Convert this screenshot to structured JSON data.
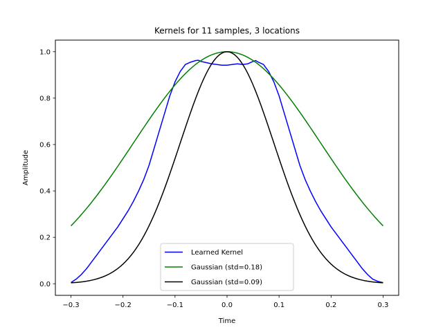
{
  "chart_data": {
    "type": "line",
    "title": "Kernels for 11 samples, 3 locations",
    "xlabel": "Time",
    "ylabel": "Amplitude",
    "xlim": [
      -0.33,
      0.33
    ],
    "ylim": [
      -0.05,
      1.05
    ],
    "xticks": [
      -0.3,
      -0.2,
      -0.1,
      0.0,
      0.1,
      0.2,
      0.3
    ],
    "xtick_labels": [
      "−0.3",
      "−0.2",
      "−0.1",
      "0.0",
      "0.1",
      "0.2",
      "0.3"
    ],
    "yticks": [
      0.0,
      0.2,
      0.4,
      0.6,
      0.8,
      1.0
    ],
    "ytick_labels": [
      "0.0",
      "0.2",
      "0.4",
      "0.6",
      "0.8",
      "1.0"
    ],
    "grid": false,
    "legend_position": "lower center",
    "series": [
      {
        "name": "Learned Kernel",
        "color": "#0000ff",
        "x": [
          -0.3,
          -0.29,
          -0.28,
          -0.27,
          -0.26,
          -0.25,
          -0.24,
          -0.23,
          -0.22,
          -0.21,
          -0.2,
          -0.19,
          -0.18,
          -0.17,
          -0.16,
          -0.15,
          -0.14,
          -0.13,
          -0.12,
          -0.11,
          -0.1,
          -0.09,
          -0.08,
          -0.07,
          -0.06,
          -0.055,
          -0.05,
          -0.04,
          -0.03,
          -0.02,
          -0.01,
          0.0,
          0.01,
          0.02,
          0.03,
          0.04,
          0.05,
          0.055,
          0.06,
          0.07,
          0.08,
          0.09,
          0.1,
          0.11,
          0.12,
          0.13,
          0.14,
          0.15,
          0.16,
          0.17,
          0.18,
          0.19,
          0.2,
          0.21,
          0.22,
          0.23,
          0.24,
          0.25,
          0.26,
          0.27,
          0.28,
          0.29,
          0.3
        ],
        "y": [
          0.005,
          0.02,
          0.04,
          0.065,
          0.095,
          0.125,
          0.155,
          0.185,
          0.215,
          0.245,
          0.28,
          0.315,
          0.355,
          0.4,
          0.45,
          0.51,
          0.585,
          0.66,
          0.735,
          0.81,
          0.87,
          0.915,
          0.945,
          0.955,
          0.962,
          0.963,
          0.958,
          0.953,
          0.948,
          0.945,
          0.942,
          0.942,
          0.945,
          0.948,
          0.945,
          0.948,
          0.958,
          0.962,
          0.955,
          0.945,
          0.915,
          0.87,
          0.81,
          0.735,
          0.66,
          0.585,
          0.51,
          0.45,
          0.4,
          0.355,
          0.315,
          0.28,
          0.245,
          0.215,
          0.185,
          0.155,
          0.125,
          0.095,
          0.065,
          0.04,
          0.02,
          0.01,
          0.005
        ]
      },
      {
        "name": "Gaussian (std=0.18)",
        "color": "#008000",
        "mu": 0.0,
        "std": 0.18,
        "x_range": [
          -0.3,
          0.3
        ]
      },
      {
        "name": "Gaussian (std=0.09)",
        "color": "#000000",
        "mu": 0.0,
        "std": 0.09,
        "x_range": [
          -0.3,
          0.3
        ]
      }
    ]
  }
}
